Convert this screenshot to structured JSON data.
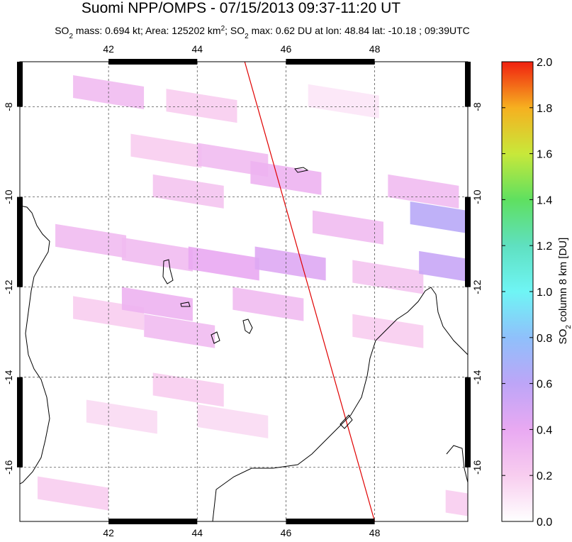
{
  "chart_data": {
    "type": "map",
    "title": "Suomi NPP/OMPS - 07/15/2013 09:37-11:20 UT",
    "subtitle_parts": [
      "SO",
      "2",
      " mass: 0.694 kt; Area: 125202 km",
      "2",
      "; SO",
      "2",
      " max: 0.62 DU at lon: 48.84 lat: -10.18 ; 09:39UTC"
    ],
    "xlim": [
      40,
      50.1
    ],
    "ylim": [
      -17.2,
      -7
    ],
    "xticks": [
      42,
      44,
      46,
      48
    ],
    "yticks": [
      -8,
      -10,
      -12,
      -14,
      -16
    ],
    "grid": true,
    "pixels": {
      "lon": [
        41.2,
        43.3,
        46.5,
        42.5,
        44.0,
        45.2,
        43.0,
        40.8,
        42.3,
        43.8,
        45.3,
        44.8,
        41.2,
        42.8,
        47.5,
        48.8,
        49.0,
        48.3,
        47.5,
        43.0,
        41.5,
        44.0,
        40.4,
        49.6,
        46.6,
        42.3
      ],
      "lat": [
        -7.3,
        -7.6,
        -7.5,
        -8.6,
        -8.8,
        -9.2,
        -9.5,
        -10.6,
        -10.9,
        -11.1,
        -11.1,
        -12.0,
        -12.2,
        -12.6,
        -11.4,
        -10.1,
        -11.2,
        -9.5,
        -12.6,
        -13.9,
        -14.5,
        -14.6,
        -16.2,
        -16.5,
        -10.3,
        -12.0
      ],
      "values": [
        0.3,
        0.2,
        0.1,
        0.2,
        0.3,
        0.35,
        0.25,
        0.3,
        0.3,
        0.4,
        0.45,
        0.3,
        0.2,
        0.3,
        0.25,
        0.62,
        0.55,
        0.3,
        0.2,
        0.2,
        0.15,
        0.15,
        0.2,
        0.2,
        0.3,
        0.35
      ]
    },
    "track": {
      "lon": [
        45.07,
        48.0
      ],
      "lat": [
        -7,
        -17.2
      ],
      "color": "#e00000"
    },
    "colorbar": {
      "label_parts": [
        "SO",
        "2",
        " column 8 km [DU]"
      ],
      "lim": [
        0,
        2
      ],
      "ticks": [
        {
          "value": 0,
          "label": "0.0"
        },
        {
          "value": 0.2,
          "label": "0.2"
        },
        {
          "value": 0.4,
          "label": "0.4"
        },
        {
          "value": 0.6,
          "label": "0.6"
        },
        {
          "value": 0.8,
          "label": "0.8"
        },
        {
          "value": 1,
          "label": "1.0"
        },
        {
          "value": 1.2,
          "label": "1.2"
        },
        {
          "value": 1.4,
          "label": "1.4"
        },
        {
          "value": 1.6,
          "label": "1.6"
        },
        {
          "value": 1.8,
          "label": "1.8"
        },
        {
          "value": 2,
          "label": "2.0"
        }
      ],
      "colormap": [
        "#ffffff",
        "#f8cdef",
        "#e9a9f2",
        "#bda5f7",
        "#8fc0fb",
        "#6ff5f5",
        "#5fe0c0",
        "#5fe060",
        "#c8e83a",
        "#f6b020",
        "#f02010"
      ]
    }
  }
}
